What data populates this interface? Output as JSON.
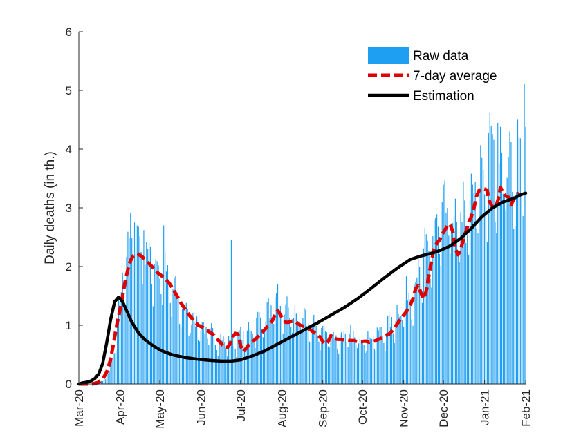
{
  "colors": {
    "raw": "#1E9FF2",
    "avg": "#E00000",
    "est": "#000000",
    "axis": "#262626"
  },
  "chart_data": {
    "type": "bar",
    "title": "",
    "xlabel": "",
    "ylabel": "Daily deaths (in th.)",
    "xlim": [
      0,
      337
    ],
    "ylim": [
      0,
      6
    ],
    "yticks": [
      0,
      1,
      2,
      3,
      4,
      5,
      6
    ],
    "yticklabels": [
      "0",
      "1",
      "2",
      "3",
      "4",
      "5",
      "6"
    ],
    "xticks": [
      {
        "day": 0,
        "label": "Mar-20"
      },
      {
        "day": 31,
        "label": "Apr-20"
      },
      {
        "day": 61,
        "label": "May-20"
      },
      {
        "day": 92,
        "label": "Jun-20"
      },
      {
        "day": 122,
        "label": "Jul-20"
      },
      {
        "day": 153,
        "label": "Aug-20"
      },
      {
        "day": 184,
        "label": "Sep-20"
      },
      {
        "day": 214,
        "label": "Oct-20"
      },
      {
        "day": 245,
        "label": "Nov-20"
      },
      {
        "day": 275,
        "label": "Dec-20"
      },
      {
        "day": 306,
        "label": "Jan-21"
      },
      {
        "day": 337,
        "label": "Feb-21"
      }
    ],
    "legend": {
      "position": "top-right",
      "entries": [
        "Raw data",
        "7-day average",
        "Estimation"
      ]
    },
    "raw_anchors": [
      [
        0,
        0
      ],
      [
        10,
        0
      ],
      [
        15,
        0.02
      ],
      [
        18,
        0.05
      ],
      [
        22,
        0.15
      ],
      [
        25,
        0.35
      ],
      [
        28,
        0.75
      ],
      [
        31,
        1.3
      ],
      [
        34,
        1.95
      ],
      [
        37,
        2.3
      ],
      [
        40,
        2.45
      ],
      [
        43,
        2.4
      ],
      [
        47,
        2.3
      ],
      [
        52,
        2.15
      ],
      [
        57,
        2.0
      ],
      [
        62,
        1.85
      ],
      [
        67,
        1.7
      ],
      [
        72,
        1.5
      ],
      [
        77,
        1.3
      ],
      [
        82,
        1.15
      ],
      [
        87,
        1.05
      ],
      [
        92,
        0.95
      ],
      [
        97,
        0.85
      ],
      [
        102,
        0.78
      ],
      [
        107,
        0.72
      ],
      [
        112,
        0.7
      ],
      [
        117,
        0.72
      ],
      [
        122,
        0.78
      ],
      [
        127,
        0.85
      ],
      [
        132,
        0.95
      ],
      [
        137,
        1.05
      ],
      [
        142,
        1.15
      ],
      [
        147,
        1.25
      ],
      [
        152,
        1.25
      ],
      [
        157,
        1.2
      ],
      [
        162,
        1.12
      ],
      [
        167,
        1.05
      ],
      [
        172,
        1.0
      ],
      [
        177,
        0.95
      ],
      [
        182,
        0.88
      ],
      [
        187,
        0.82
      ],
      [
        192,
        0.78
      ],
      [
        197,
        0.78
      ],
      [
        202,
        0.78
      ],
      [
        207,
        0.78
      ],
      [
        212,
        0.75
      ],
      [
        217,
        0.75
      ],
      [
        222,
        0.78
      ],
      [
        227,
        0.82
      ],
      [
        232,
        0.9
      ],
      [
        237,
        1.05
      ],
      [
        242,
        1.2
      ],
      [
        247,
        1.4
      ],
      [
        252,
        1.6
      ],
      [
        257,
        1.85
      ],
      [
        262,
        2.1
      ],
      [
        267,
        2.4
      ],
      [
        272,
        2.6
      ],
      [
        277,
        2.75
      ],
      [
        282,
        2.7
      ],
      [
        287,
        2.55
      ],
      [
        292,
        2.7
      ],
      [
        297,
        3.0
      ],
      [
        302,
        3.3
      ],
      [
        307,
        3.6
      ],
      [
        312,
        3.75
      ],
      [
        317,
        3.8
      ],
      [
        322,
        3.7
      ],
      [
        327,
        3.6
      ],
      [
        332,
        3.6
      ],
      [
        337,
        3.7
      ]
    ],
    "raw_spikes": [
      {
        "day": 42,
        "value": 2.75
      },
      {
        "day": 44,
        "value": 2.7
      },
      {
        "day": 49,
        "value": 2.62
      },
      {
        "day": 64,
        "value": 2.7
      },
      {
        "day": 115,
        "value": 2.45
      },
      {
        "day": 150,
        "value": 1.7
      },
      {
        "day": 278,
        "value": 3.0
      },
      {
        "day": 290,
        "value": 3.45
      },
      {
        "day": 304,
        "value": 3.85
      },
      {
        "day": 311,
        "value": 4.4
      },
      {
        "day": 318,
        "value": 4.38
      },
      {
        "day": 325,
        "value": 4.3
      },
      {
        "day": 332,
        "value": 4.2
      },
      {
        "day": 336,
        "value": 5.12
      }
    ],
    "series": [
      {
        "name": "7-day average",
        "style": "dashed",
        "points": [
          [
            0,
            0
          ],
          [
            10,
            0
          ],
          [
            14,
            0.02
          ],
          [
            18,
            0.08
          ],
          [
            21,
            0.2
          ],
          [
            24,
            0.42
          ],
          [
            27,
            0.8
          ],
          [
            29,
            1.05
          ],
          [
            31,
            1.25
          ],
          [
            33,
            1.5
          ],
          [
            35,
            1.75
          ],
          [
            37,
            1.95
          ],
          [
            39,
            2.1
          ],
          [
            41,
            2.18
          ],
          [
            44,
            2.22
          ],
          [
            47,
            2.18
          ],
          [
            50,
            2.12
          ],
          [
            53,
            2.05
          ],
          [
            56,
            1.98
          ],
          [
            59,
            1.9
          ],
          [
            62,
            1.85
          ],
          [
            65,
            1.8
          ],
          [
            68,
            1.72
          ],
          [
            71,
            1.62
          ],
          [
            74,
            1.5
          ],
          [
            77,
            1.38
          ],
          [
            80,
            1.28
          ],
          [
            83,
            1.18
          ],
          [
            86,
            1.1
          ],
          [
            88,
            1.05
          ],
          [
            90,
            1.0
          ],
          [
            93,
            0.97
          ],
          [
            96,
            0.93
          ],
          [
            99,
            0.88
          ],
          [
            102,
            0.83
          ],
          [
            105,
            0.75
          ],
          [
            108,
            0.67
          ],
          [
            110,
            0.62
          ],
          [
            112,
            0.62
          ],
          [
            114,
            0.68
          ],
          [
            116,
            0.8
          ],
          [
            118,
            0.86
          ],
          [
            120,
            0.85
          ],
          [
            122,
            0.65
          ],
          [
            124,
            0.55
          ],
          [
            126,
            0.6
          ],
          [
            128,
            0.66
          ],
          [
            131,
            0.72
          ],
          [
            134,
            0.78
          ],
          [
            137,
            0.85
          ],
          [
            140,
            0.92
          ],
          [
            143,
            1.0
          ],
          [
            146,
            1.08
          ],
          [
            148,
            1.18
          ],
          [
            150,
            1.25
          ],
          [
            152,
            1.18
          ],
          [
            154,
            1.1
          ],
          [
            156,
            1.05
          ],
          [
            158,
            1.05
          ],
          [
            161,
            1.07
          ],
          [
            164,
            1.05
          ],
          [
            167,
            1.0
          ],
          [
            170,
            0.98
          ],
          [
            173,
            0.95
          ],
          [
            176,
            0.9
          ],
          [
            179,
            0.85
          ],
          [
            182,
            0.8
          ],
          [
            184,
            0.72
          ],
          [
            186,
            0.68
          ],
          [
            188,
            0.72
          ],
          [
            190,
            0.82
          ],
          [
            192,
            0.78
          ],
          [
            195,
            0.76
          ],
          [
            198,
            0.76
          ],
          [
            201,
            0.75
          ],
          [
            204,
            0.74
          ],
          [
            207,
            0.74
          ],
          [
            210,
            0.72
          ],
          [
            213,
            0.72
          ],
          [
            216,
            0.73
          ],
          [
            219,
            0.71
          ],
          [
            222,
            0.72
          ],
          [
            225,
            0.75
          ],
          [
            228,
            0.78
          ],
          [
            231,
            0.82
          ],
          [
            234,
            0.85
          ],
          [
            237,
            0.92
          ],
          [
            240,
            1.02
          ],
          [
            243,
            1.12
          ],
          [
            246,
            1.2
          ],
          [
            249,
            1.3
          ],
          [
            252,
            1.45
          ],
          [
            254,
            1.62
          ],
          [
            256,
            1.68
          ],
          [
            258,
            1.55
          ],
          [
            260,
            1.45
          ],
          [
            262,
            1.58
          ],
          [
            264,
            1.85
          ],
          [
            266,
            2.1
          ],
          [
            268,
            2.3
          ],
          [
            270,
            2.4
          ],
          [
            272,
            2.45
          ],
          [
            274,
            2.55
          ],
          [
            276,
            2.62
          ],
          [
            278,
            2.7
          ],
          [
            280,
            2.72
          ],
          [
            282,
            2.6
          ],
          [
            284,
            2.3
          ],
          [
            286,
            2.2
          ],
          [
            288,
            2.3
          ],
          [
            290,
            2.45
          ],
          [
            292,
            2.6
          ],
          [
            294,
            2.75
          ],
          [
            296,
            2.85
          ],
          [
            298,
            3.0
          ],
          [
            300,
            3.2
          ],
          [
            302,
            3.3
          ],
          [
            304,
            3.33
          ],
          [
            306,
            3.32
          ],
          [
            308,
            3.3
          ],
          [
            309,
            3.15
          ],
          [
            311,
            3.05
          ],
          [
            313,
            3.0
          ],
          [
            315,
            3.05
          ],
          [
            317,
            3.2
          ],
          [
            318,
            3.35
          ],
          [
            320,
            3.25
          ],
          [
            322,
            3.2
          ],
          [
            324,
            3.18
          ],
          [
            326,
            3.05
          ],
          [
            328,
            3.15
          ],
          [
            330,
            3.22
          ],
          [
            332,
            3.25
          ]
        ]
      },
      {
        "name": "Estimation",
        "style": "solid",
        "points": [
          [
            0,
            0.0
          ],
          [
            3,
            0.02
          ],
          [
            6,
            0.03
          ],
          [
            9,
            0.05
          ],
          [
            12,
            0.09
          ],
          [
            15,
            0.17
          ],
          [
            18,
            0.35
          ],
          [
            21,
            0.7
          ],
          [
            24,
            1.1
          ],
          [
            27,
            1.4
          ],
          [
            30,
            1.48
          ],
          [
            33,
            1.4
          ],
          [
            36,
            1.25
          ],
          [
            40,
            1.05
          ],
          [
            45,
            0.87
          ],
          [
            50,
            0.75
          ],
          [
            56,
            0.65
          ],
          [
            62,
            0.57
          ],
          [
            70,
            0.5
          ],
          [
            80,
            0.45
          ],
          [
            90,
            0.42
          ],
          [
            100,
            0.4
          ],
          [
            108,
            0.39
          ],
          [
            115,
            0.39
          ],
          [
            122,
            0.41
          ],
          [
            130,
            0.47
          ],
          [
            140,
            0.56
          ],
          [
            150,
            0.68
          ],
          [
            160,
            0.8
          ],
          [
            170,
            0.92
          ],
          [
            180,
            1.04
          ],
          [
            190,
            1.17
          ],
          [
            200,
            1.3
          ],
          [
            210,
            1.45
          ],
          [
            220,
            1.62
          ],
          [
            230,
            1.8
          ],
          [
            240,
            1.97
          ],
          [
            250,
            2.12
          ],
          [
            258,
            2.18
          ],
          [
            265,
            2.22
          ],
          [
            272,
            2.27
          ],
          [
            280,
            2.35
          ],
          [
            288,
            2.48
          ],
          [
            296,
            2.65
          ],
          [
            304,
            2.85
          ],
          [
            312,
            3.0
          ],
          [
            320,
            3.1
          ],
          [
            328,
            3.16
          ],
          [
            333,
            3.22
          ],
          [
            337,
            3.25
          ]
        ]
      }
    ]
  }
}
